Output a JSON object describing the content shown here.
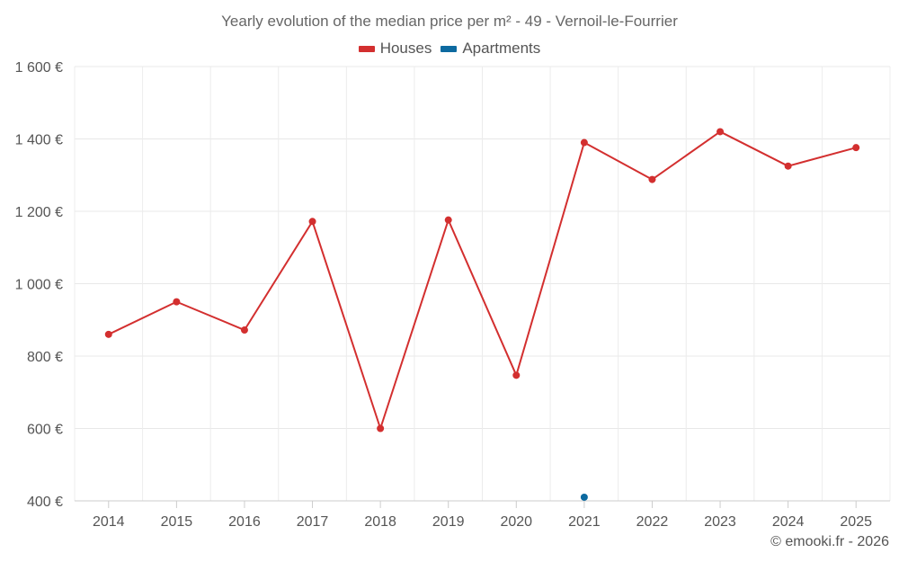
{
  "title": "Yearly evolution of the median price per m² - 49 - Vernoil-le-Fourrier",
  "credit": "© emooki.fr - 2026",
  "legend": [
    {
      "name": "Houses",
      "color": "#d32f2f"
    },
    {
      "name": "Apartments",
      "color": "#0d6aa0"
    }
  ],
  "chart_data": {
    "type": "line",
    "title": "Yearly evolution of the median price per m² - 49 - Vernoil-le-Fourrier",
    "categories": [
      "2014",
      "2015",
      "2016",
      "2017",
      "2018",
      "2019",
      "2020",
      "2021",
      "2022",
      "2023",
      "2024",
      "2025"
    ],
    "y_ticks": [
      "400 €",
      "600 €",
      "800 €",
      "1 000 €",
      "1 200 €",
      "1 400 €",
      "1 600 €"
    ],
    "ylim": [
      400,
      1600
    ],
    "grid": true,
    "legend_position": "top-center",
    "series": [
      {
        "name": "Houses",
        "color": "#d32f2f",
        "values": [
          860,
          950,
          872,
          1172,
          600,
          1176,
          747,
          1390,
          1288,
          1420,
          1325,
          1376
        ]
      },
      {
        "name": "Apartments",
        "color": "#0d6aa0",
        "values": [
          null,
          null,
          null,
          null,
          null,
          null,
          null,
          410,
          null,
          null,
          null,
          null
        ]
      }
    ]
  }
}
